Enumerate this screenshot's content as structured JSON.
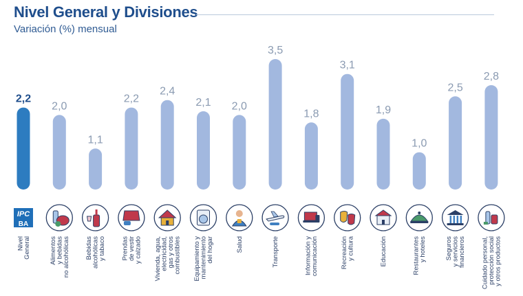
{
  "title": "Nivel General y Divisiones",
  "subtitle": "Variación (%) mensual",
  "colors": {
    "highlight": "#2d7cc0",
    "bar": "#a2b8df",
    "label": "#8a9ab1",
    "highlight_label": "#1f4e8c",
    "axis_text": "#2b3f66"
  },
  "chart_data": {
    "type": "bar",
    "title": "Nivel General y Divisiones",
    "subtitle": "Variación (%) mensual",
    "xlabel": "",
    "ylabel": "",
    "ylim": [
      0,
      3.5
    ],
    "grid": false,
    "categories": [
      [
        "Nivel",
        "General"
      ],
      [
        "Alimentos",
        "y bebidas",
        "no alcohólicas"
      ],
      [
        "Bebidas",
        "alcohólicas",
        "y tabaco"
      ],
      [
        "Prendas",
        "de vestir",
        "y calzado"
      ],
      [
        "Vivienda, agua,",
        "electricidad,",
        "gas y otros",
        "combustibles"
      ],
      [
        "Equipamiento y",
        "mantenimiento",
        "del hogar"
      ],
      [
        "Salud"
      ],
      [
        "Transporte"
      ],
      [
        "Información y",
        "comunicación"
      ],
      [
        "Recreación",
        "y cultura"
      ],
      [
        "Educación"
      ],
      [
        "Restaurantes",
        "y hoteles"
      ],
      [
        "Seguros",
        "y servicios",
        "financieros"
      ],
      [
        "Cuidado personal,",
        "protección social",
        "y otros productos"
      ]
    ],
    "values": [
      2.2,
      2.0,
      1.1,
      2.2,
      2.4,
      2.1,
      2.0,
      3.5,
      1.8,
      3.1,
      1.9,
      1.0,
      2.5,
      2.8
    ],
    "value_labels": [
      "2,2",
      "2,0",
      "1,1",
      "2,2",
      "2,4",
      "2,1",
      "2,0",
      "3,5",
      "1,8",
      "3,1",
      "1,9",
      "1,0",
      "2,5",
      "2,8"
    ],
    "highlight_index": 0
  },
  "icons": [
    {
      "name": "ipc-ba-logo",
      "text": [
        "IPC",
        "BA"
      ]
    },
    {
      "name": "food-icon"
    },
    {
      "name": "wine-bottle-icon"
    },
    {
      "name": "clothing-icon"
    },
    {
      "name": "house-icon"
    },
    {
      "name": "washing-machine-icon"
    },
    {
      "name": "doctor-icon"
    },
    {
      "name": "airplane-icon"
    },
    {
      "name": "laptop-icon"
    },
    {
      "name": "theater-masks-icon"
    },
    {
      "name": "school-icon"
    },
    {
      "name": "food-cloche-icon"
    },
    {
      "name": "bank-icon"
    },
    {
      "name": "toiletries-icon"
    }
  ]
}
